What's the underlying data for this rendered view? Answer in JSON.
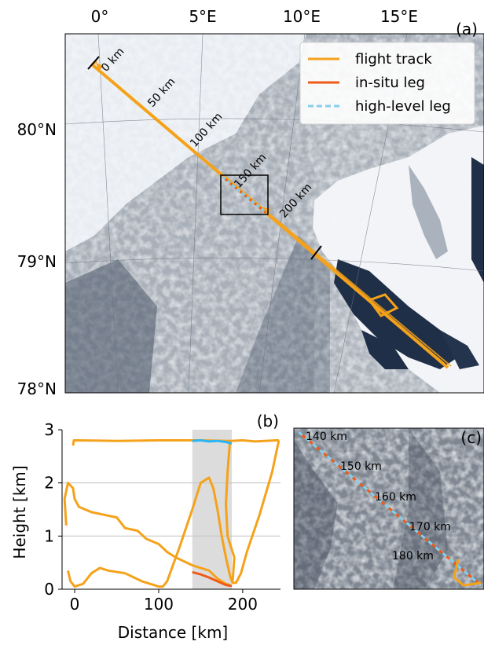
{
  "panel_a": {
    "label": "(a)",
    "lon_ticks": [
      "0°",
      "5°E",
      "10°E",
      "15°E"
    ],
    "lat_ticks": [
      "80°N",
      "79°N",
      "78°N"
    ],
    "km_labels": [
      "0 km",
      "50 km",
      "100 km",
      "150 km",
      "200 km"
    ],
    "legend": {
      "items": [
        {
          "label": "flight track",
          "color": "#f5a21b",
          "style": "solid"
        },
        {
          "label": "in-situ leg",
          "color": "#f05a16",
          "style": "solid"
        },
        {
          "label": "high-level leg",
          "color": "#87ceeb",
          "style": "dashed"
        }
      ],
      "position": "top-right"
    }
  },
  "panel_c": {
    "label": "(c)",
    "km_labels": [
      "140 km",
      "150 km",
      "160 km",
      "170 km",
      "180 km"
    ]
  },
  "chart_data": {
    "type": "line",
    "label": "(b)",
    "xlabel": "Distance [km]",
    "ylabel": "Height [km]",
    "xlim": [
      -15,
      245
    ],
    "ylim": [
      0,
      3
    ],
    "xticks": [
      0,
      100,
      200
    ],
    "yticks": [
      0,
      1,
      2,
      3
    ],
    "grid_y": [
      1,
      2
    ],
    "highlight_range": [
      140,
      187
    ],
    "series": [
      {
        "role": "flight track",
        "color": "#f5a21b",
        "x": [
          -2,
          -1,
          0,
          50,
          100,
          150,
          185,
          200,
          215,
          240,
          243
        ],
        "y": [
          2.7,
          2.8,
          2.8,
          2.79,
          2.8,
          2.8,
          2.79,
          2.8,
          2.78,
          2.8,
          2.8
        ]
      },
      {
        "role": "flight track",
        "color": "#f5a21b",
        "x": [
          -10,
          -12,
          -8,
          -2,
          0,
          5,
          20,
          50,
          60,
          75,
          85,
          100,
          110,
          120,
          140,
          160,
          170,
          180,
          185
        ],
        "y": [
          1.2,
          1.7,
          2.0,
          1.9,
          1.7,
          1.55,
          1.45,
          1.35,
          1.15,
          1.1,
          0.95,
          0.85,
          0.7,
          0.6,
          0.45,
          0.35,
          0.2,
          0.1,
          0.08
        ]
      },
      {
        "role": "flight track",
        "color": "#f5a21b",
        "x": [
          -8,
          -5,
          0,
          10,
          20,
          30,
          40,
          60,
          80,
          100,
          105,
          110,
          125,
          140
        ],
        "y": [
          0.35,
          0.15,
          0.05,
          0.1,
          0.3,
          0.4,
          0.35,
          0.3,
          0.15,
          0.05,
          0.05,
          0.15,
          0.8,
          1.5
        ]
      },
      {
        "role": "flight track",
        "color": "#f5a21b",
        "x": [
          140,
          150,
          160,
          165,
          170,
          175,
          180,
          185,
          188,
          192,
          198,
          205,
          220,
          235,
          243
        ],
        "y": [
          1.5,
          2.0,
          2.1,
          1.9,
          1.5,
          1.0,
          0.6,
          0.25,
          0.12,
          0.12,
          0.3,
          0.7,
          1.4,
          2.2,
          2.8
        ]
      },
      {
        "role": "flight track",
        "color": "#f5a21b",
        "x": [
          185,
          182,
          180,
          182,
          190,
          188
        ],
        "y": [
          2.8,
          2.2,
          1.6,
          1.0,
          0.6,
          0.15
        ]
      },
      {
        "role": "in-situ leg",
        "color": "#f05a16",
        "x": [
          140,
          150,
          160,
          170,
          180,
          187
        ],
        "y": [
          0.32,
          0.28,
          0.22,
          0.15,
          0.08,
          0.06
        ]
      },
      {
        "role": "high-level leg",
        "color": "#29b6f6",
        "x": [
          140,
          150,
          160,
          170,
          180,
          187
        ],
        "y": [
          2.79,
          2.8,
          2.78,
          2.79,
          2.77,
          2.74
        ]
      }
    ]
  },
  "colors": {
    "flight_track": "#f5a21b",
    "in_situ": "#f05a16",
    "high_level": "#87ceeb",
    "sea": "#1f2f47"
  }
}
